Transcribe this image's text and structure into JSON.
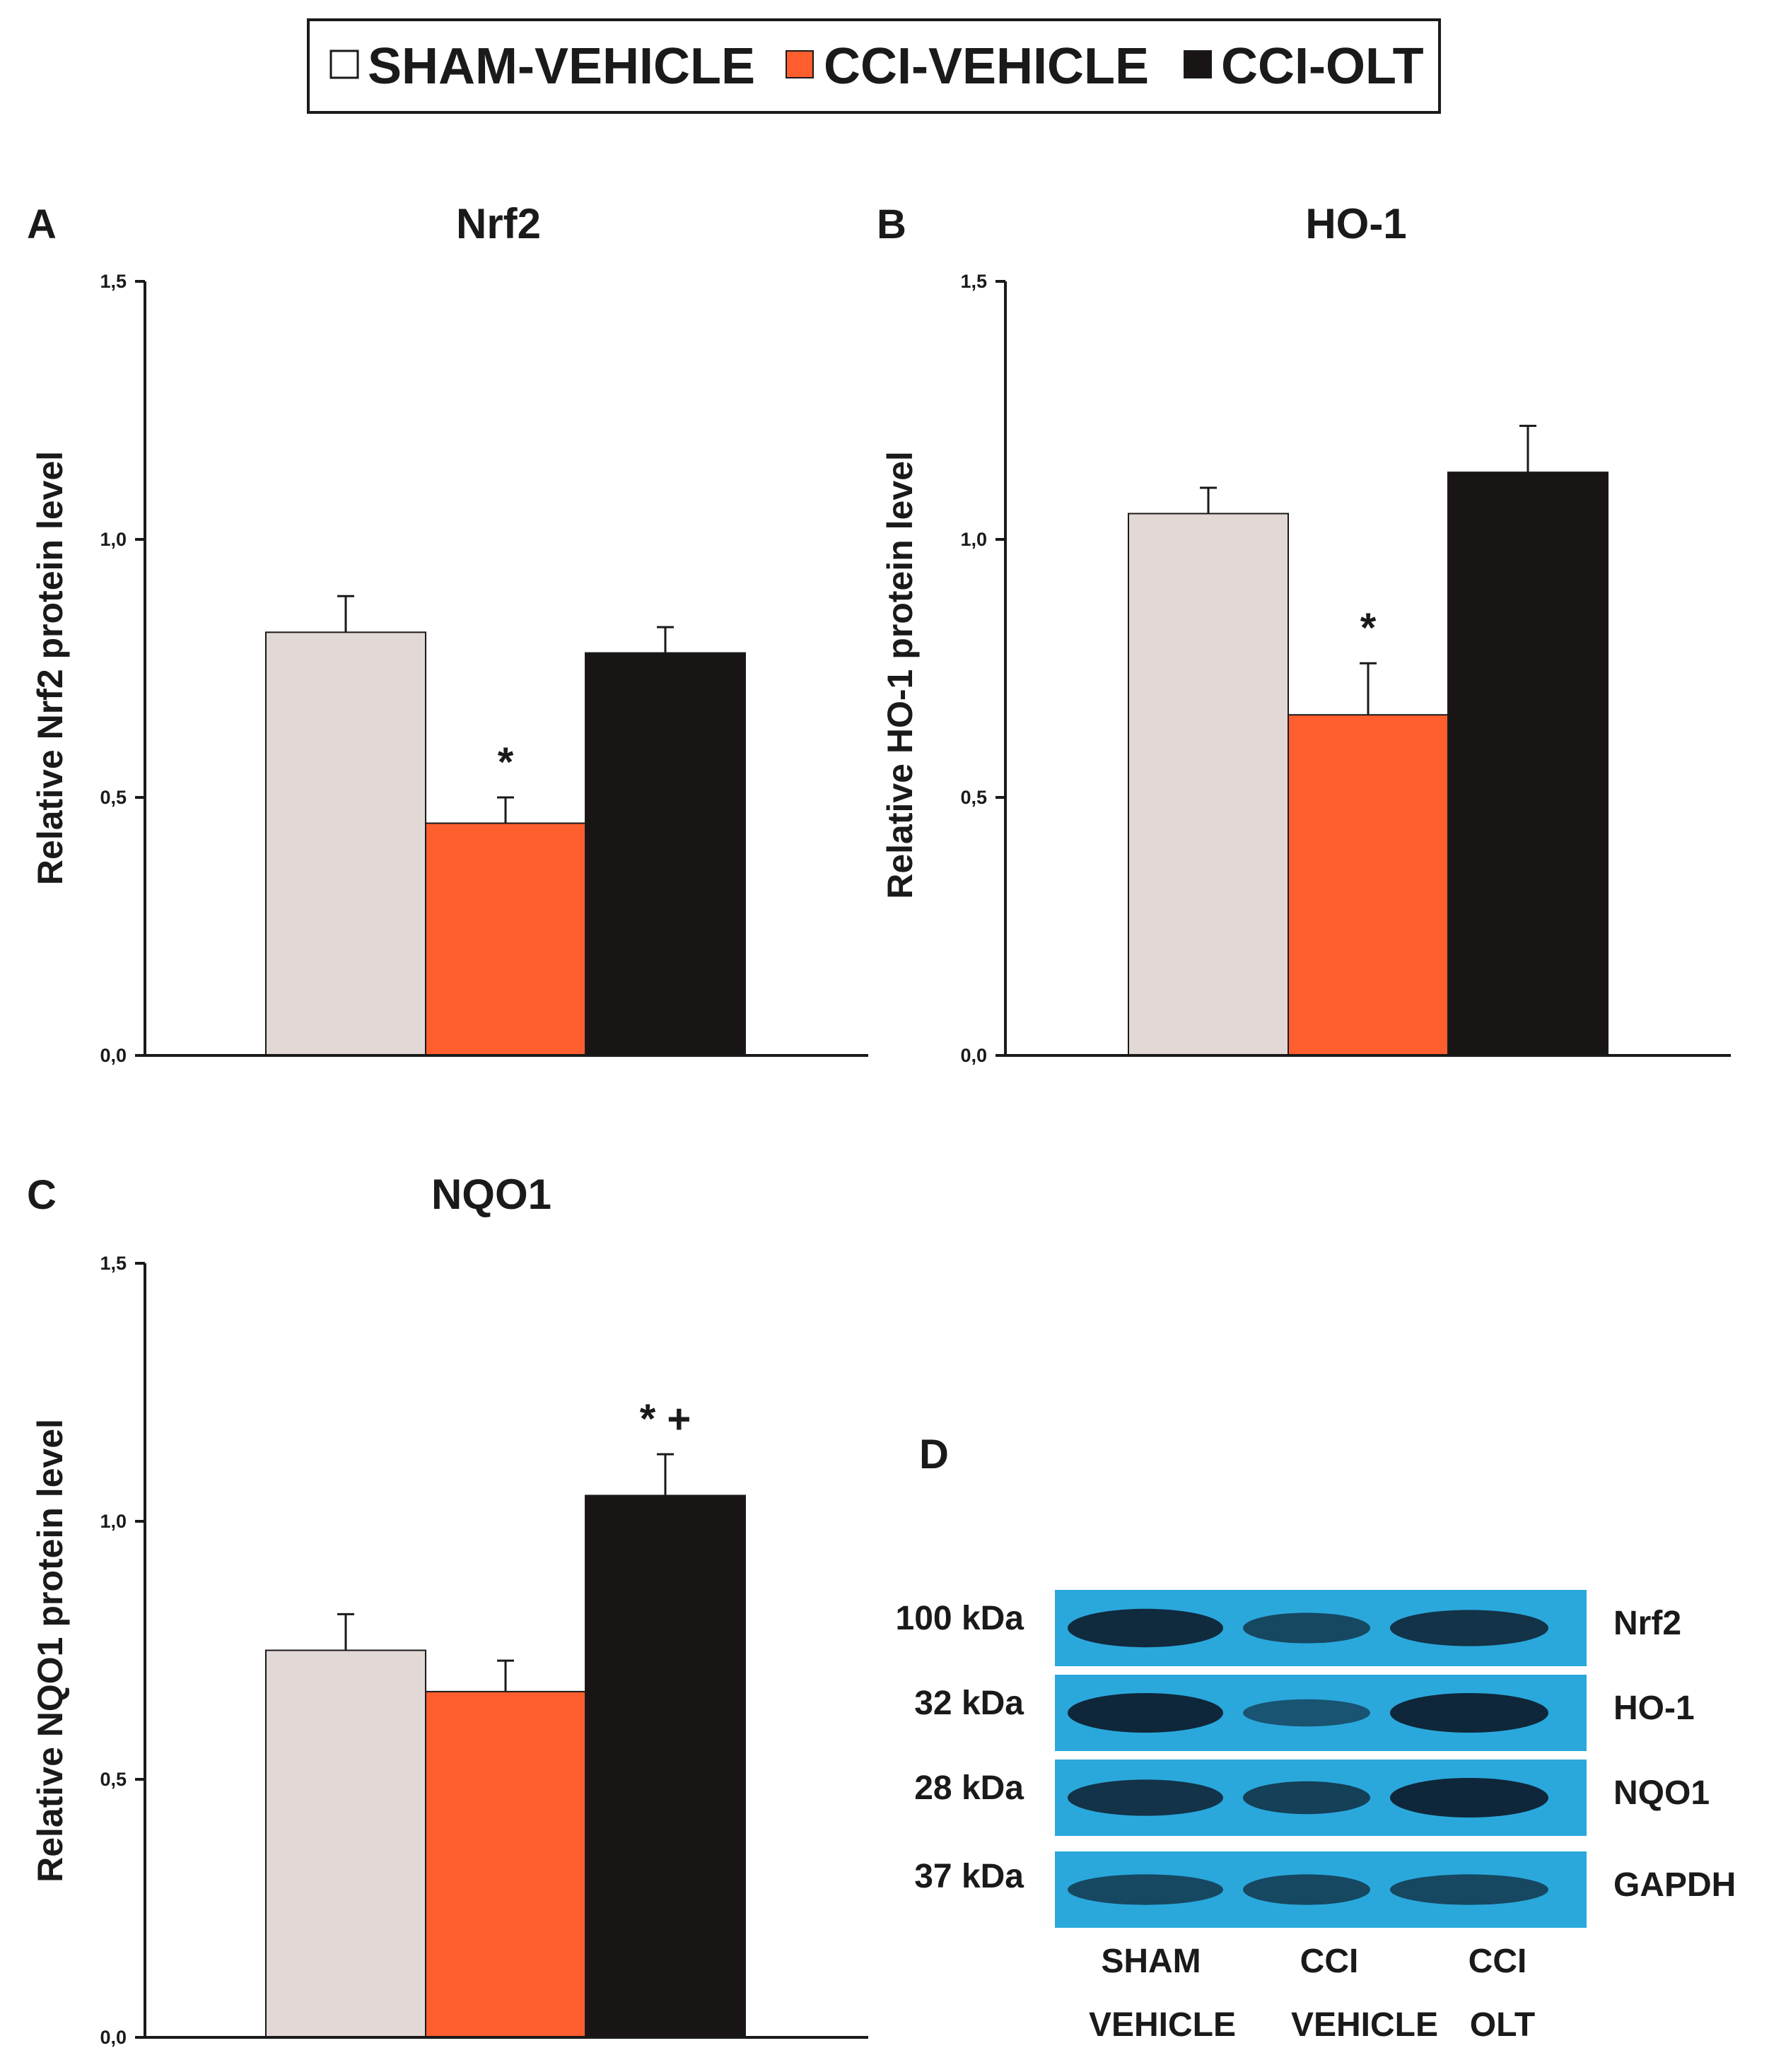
{
  "legend": {
    "items": [
      {
        "label": "SHAM-VEHICLE",
        "color": "#ffffff"
      },
      {
        "label": "CCI-VEHICLE",
        "color": "#ff5e2e"
      },
      {
        "label": "CCI-OLT",
        "color": "#1a1515"
      }
    ]
  },
  "colors": {
    "sham_bar": "#e2d8d6",
    "cci_vehicle_bar": "#ff5e2e",
    "cci_olt_bar": "#1a1515",
    "axis": "#1a1a1a",
    "blot_background": "#2aa8dc",
    "blot_band": "#0e2030"
  },
  "chart_data": [
    {
      "panel": "A",
      "type": "bar",
      "title": "Nrf2",
      "ylabel": "Relative Nrf2 protein level",
      "xlabel": "",
      "ylim": [
        0,
        1.5
      ],
      "yticks": [
        "0,0",
        "0,5",
        "1,0",
        "1,5"
      ],
      "categories": [
        "SHAM-VEHICLE",
        "CCI-VEHICLE",
        "CCI-OLT"
      ],
      "values": [
        0.82,
        0.45,
        0.78
      ],
      "errors": [
        0.07,
        0.05,
        0.05
      ],
      "annotations": [
        "",
        "*",
        ""
      ]
    },
    {
      "panel": "B",
      "type": "bar",
      "title": "HO-1",
      "ylabel": "Relative HO-1 protein level",
      "xlabel": "",
      "ylim": [
        0,
        1.5
      ],
      "yticks": [
        "0,0",
        "0,5",
        "1,0",
        "1,5"
      ],
      "categories": [
        "SHAM-VEHICLE",
        "CCI-VEHICLE",
        "CCI-OLT"
      ],
      "values": [
        1.05,
        0.66,
        1.13
      ],
      "errors": [
        0.05,
        0.1,
        0.09
      ],
      "annotations": [
        "",
        "*",
        ""
      ]
    },
    {
      "panel": "C",
      "type": "bar",
      "title": "NQO1",
      "ylabel": "Relative NQO1 protein level",
      "xlabel": "",
      "ylim": [
        0,
        1.5
      ],
      "yticks": [
        "0,0",
        "0,5",
        "1,0",
        "1,5"
      ],
      "categories": [
        "SHAM-VEHICLE",
        "CCI-VEHICLE",
        "CCI-OLT"
      ],
      "values": [
        0.75,
        0.67,
        1.05
      ],
      "errors": [
        0.07,
        0.06,
        0.08
      ],
      "annotations": [
        "",
        "",
        "* +"
      ]
    }
  ],
  "blot": {
    "panel": "D",
    "rows": [
      {
        "kda": "100 kDa",
        "protein": "Nrf2",
        "intensities": [
          0.95,
          0.6,
          0.85
        ]
      },
      {
        "kda": "32 kDa",
        "protein": "HO-1",
        "intensities": [
          1.0,
          0.45,
          1.0
        ]
      },
      {
        "kda": "28 kDa",
        "protein": "NQO1",
        "intensities": [
          0.85,
          0.7,
          1.0
        ]
      },
      {
        "kda": "37 kDa",
        "protein": "GAPDH",
        "intensities": [
          0.6,
          0.6,
          0.6
        ]
      }
    ],
    "lanes": [
      {
        "line1": "SHAM",
        "line2": "VEHICLE"
      },
      {
        "line1": "CCI",
        "line2": "VEHICLE"
      },
      {
        "line1": "CCI",
        "line2": "OLT"
      }
    ]
  }
}
